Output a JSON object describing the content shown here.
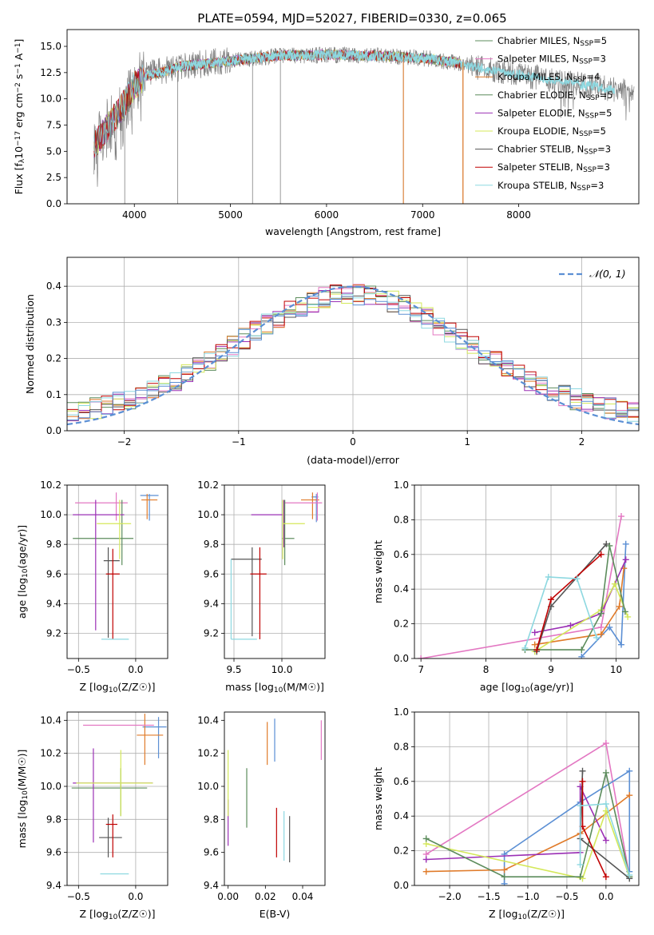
{
  "chart_data": [
    {
      "id": "spectrum",
      "type": "line",
      "title": "PLATE=0594, MJD=52027, FIBERID=0330, z=0.065",
      "xlabel": "wavelength [Angstrom, rest frame]",
      "ylabel": "Flux [f_λ10^-17 erg cm^-2 s^-1 A^-1]",
      "xlim": [
        3300,
        9250
      ],
      "ylim": [
        0,
        16.6
      ],
      "xticks": [
        4000,
        5000,
        6000,
        7000,
        8000
      ],
      "yticks": [
        0.0,
        2.5,
        5.0,
        7.5,
        10.0,
        12.5,
        15.0
      ],
      "grid": false,
      "legend_position": "upper-right",
      "data_color": "#808080",
      "wavelength_range": [
        3580,
        9200
      ],
      "continuum_anchors": {
        "x": [
          3580,
          3700,
          3800,
          3900,
          4000,
          4100,
          4300,
          4500,
          4800,
          5000,
          5500,
          6000,
          6500,
          7000,
          7300,
          7500,
          8000,
          8500,
          9200
        ],
        "y": [
          5.6,
          7.0,
          8.3,
          9.6,
          11.2,
          12.1,
          12.6,
          13.1,
          13.4,
          13.6,
          14.1,
          14.2,
          14.1,
          13.9,
          13.5,
          13.1,
          12.3,
          11.6,
          10.6
        ]
      },
      "absorption_spikes": [
        3900,
        4450,
        5230,
        5520,
        6800,
        7420
      ],
      "series": [
        {
          "name": "Chabrier MILES, N_SSP=5",
          "color": "#5c8c5c"
        },
        {
          "name": "Salpeter MILES, N_SSP=3",
          "color": "#e377c2"
        },
        {
          "name": "Kroupa MILES, N_SSP=4",
          "color": "#e07b2a"
        },
        {
          "name": "Chabrier ELODIE, N_SSP=5",
          "color": "#5c8c5c"
        },
        {
          "name": "Salpeter ELODIE, N_SSP=5",
          "color": "#9b30b5"
        },
        {
          "name": "Kroupa ELODIE, N_SSP=5",
          "color": "#d4e85a"
        },
        {
          "name": "Chabrier STELIB, N_SSP=3",
          "color": "#555555"
        },
        {
          "name": "Salpeter STELIB, N_SSP=3",
          "color": "#c00000"
        },
        {
          "name": "Kroupa STELIB, N_SSP=3",
          "color": "#8dd8e0"
        }
      ]
    },
    {
      "id": "residuals",
      "type": "line",
      "xlabel": "(data-model)/error",
      "ylabel": "Normed distribution",
      "xlim": [
        -2.5,
        2.5
      ],
      "ylim": [
        0,
        0.48
      ],
      "xticks": [
        -2,
        -1,
        0,
        1,
        2
      ],
      "yticks": [
        0.0,
        0.1,
        0.2,
        0.3,
        0.4
      ],
      "grid": true,
      "legend_label": "N(0,1)",
      "legend_position": "upper-right",
      "gaussian_color": "#5b8fd4",
      "bin_width": 0.1,
      "hist_colors": [
        "#5c8c5c",
        "#e377c2",
        "#e07b2a",
        "#9b30b5",
        "#d4e85a",
        "#555555",
        "#c00000",
        "#8dd8e0",
        "#5b8fd4"
      ]
    },
    {
      "id": "age_vs_Z",
      "type": "scatter",
      "xlabel": "Z [log10(Z/Z☉)]",
      "ylabel": "age [log10(age/yr)]",
      "xlim": [
        -0.6,
        0.28
      ],
      "ylim": [
        9.03,
        10.2
      ],
      "xticks": [
        -0.5,
        0.0
      ],
      "yticks": [
        9.2,
        9.4,
        9.6,
        9.8,
        10.0,
        10.2
      ],
      "grid": true,
      "points": [
        {
          "color": "#5b8fd4",
          "x": 0.12,
          "xerr": [
            0.08,
            0.08
          ],
          "y": 10.13,
          "yerr": [
            0.17,
            0.01
          ]
        },
        {
          "color": "#e07b2a",
          "x": 0.1,
          "xerr": [
            0.05,
            0.09
          ],
          "y": 10.1,
          "yerr": [
            0.13,
            0.04
          ]
        },
        {
          "color": "#e377c2",
          "x": -0.17,
          "xerr": [
            0.36,
            0.1
          ],
          "y": 10.08,
          "yerr": [
            0.12,
            0.07
          ]
        },
        {
          "color": "#5c8c5c",
          "x": -0.12,
          "xerr": [
            0.43,
            0.1
          ],
          "y": 9.84,
          "yerr": [
            0.18,
            0.26
          ]
        },
        {
          "color": "#9b30b5",
          "x": -0.35,
          "xerr": [
            0.2,
            0.25
          ],
          "y": 10.0,
          "yerr": [
            0.78,
            0.1
          ]
        },
        {
          "color": "#d4e85a",
          "x": -0.14,
          "xerr": [
            0.2,
            0.1
          ],
          "y": 9.94,
          "yerr": [
            0.24,
            0.16
          ]
        },
        {
          "color": "#555555",
          "x": -0.24,
          "xerr": [
            0.04,
            0.1
          ],
          "y": 9.69,
          "yerr": [
            0.52,
            0.09
          ]
        },
        {
          "color": "#c00000",
          "x": -0.2,
          "xerr": [
            0.06,
            0.06
          ],
          "y": 9.6,
          "yerr": [
            0.44,
            0.17
          ]
        },
        {
          "color": "#8dd8e0",
          "x": -0.24,
          "xerr": [
            0.06,
            0.18
          ],
          "y": 9.16,
          "yerr": [
            0.0,
            0.0
          ]
        }
      ]
    },
    {
      "id": "age_vs_mass",
      "type": "scatter",
      "xlabel": "mass [log10(M/M☉)]",
      "ylabel": "",
      "xlim": [
        9.4,
        10.45
      ],
      "ylim": [
        9.03,
        10.2
      ],
      "xticks": [
        9.5,
        10.0
      ],
      "yticks": [
        9.2,
        9.4,
        9.6,
        9.8,
        10.0,
        10.2
      ],
      "grid": true,
      "points": [
        {
          "color": "#5b8fd4",
          "x": 10.36,
          "xerr": [
            0.05,
            0.02
          ],
          "y": 10.12,
          "yerr": [
            0.17,
            0.02
          ]
        },
        {
          "color": "#e07b2a",
          "x": 10.32,
          "xerr": [
            0.12,
            0.07
          ],
          "y": 10.1,
          "yerr": [
            0.13,
            0.05
          ]
        },
        {
          "color": "#e377c2",
          "x": 10.37,
          "xerr": [
            0.34,
            0.05
          ],
          "y": 10.08,
          "yerr": [
            0.12,
            0.07
          ]
        },
        {
          "color": "#5c8c5c",
          "x": 10.03,
          "xerr": [
            0.03,
            0.1
          ],
          "y": 9.84,
          "yerr": [
            0.18,
            0.26
          ]
        },
        {
          "color": "#9b30b5",
          "x": 10.02,
          "xerr": [
            0.34,
            0.0
          ],
          "y": 10.0,
          "yerr": [
            0.22,
            0.1
          ]
        },
        {
          "color": "#d4e85a",
          "x": 10.01,
          "xerr": [
            0.0,
            0.23
          ],
          "y": 9.94,
          "yerr": [
            0.24,
            0.16
          ]
        },
        {
          "color": "#555555",
          "x": 9.69,
          "xerr": [
            0.22,
            0.1
          ],
          "y": 9.7,
          "yerr": [
            0.52,
            0.08
          ]
        },
        {
          "color": "#c00000",
          "x": 9.77,
          "xerr": [
            0.1,
            0.07
          ],
          "y": 9.6,
          "yerr": [
            0.44,
            0.18
          ]
        },
        {
          "color": "#8dd8e0",
          "x": 9.47,
          "xerr": [
            0.0,
            0.27
          ],
          "y": 9.16,
          "yerr": [
            0.0,
            0.54
          ]
        }
      ]
    },
    {
      "id": "weight_vs_age",
      "type": "line",
      "xlabel": "age [log10(age/yr)]",
      "ylabel": "mass weight",
      "xlim": [
        6.9,
        10.35
      ],
      "ylim": [
        0,
        1.0
      ],
      "xticks": [
        7,
        8,
        9,
        10
      ],
      "yticks": [
        0.0,
        0.2,
        0.4,
        0.6,
        0.8,
        1.0
      ],
      "grid": true,
      "series": [
        {
          "color": "#e377c2",
          "x": [
            7.0,
            9.77,
            10.08
          ],
          "y": [
            0.0,
            0.18,
            0.82
          ]
        },
        {
          "color": "#5b8fd4",
          "x": [
            9.47,
            9.9,
            10.08,
            10.15
          ],
          "y": [
            0.01,
            0.18,
            0.08,
            0.66
          ]
        },
        {
          "color": "#e07b2a",
          "x": [
            8.75,
            9.77,
            10.05,
            10.12
          ],
          "y": [
            0.08,
            0.14,
            0.3,
            0.52
          ]
        },
        {
          "color": "#9b30b5",
          "x": [
            8.75,
            9.3,
            9.77,
            10.15
          ],
          "y": [
            0.15,
            0.19,
            0.26,
            0.57
          ]
        },
        {
          "color": "#d4e85a",
          "x": [
            8.75,
            9.77,
            9.98,
            10.18
          ],
          "y": [
            0.04,
            0.28,
            0.43,
            0.24
          ]
        },
        {
          "color": "#5c8c5c",
          "x": [
            8.6,
            9.47,
            9.77,
            9.9,
            10.14
          ],
          "y": [
            0.05,
            0.05,
            0.26,
            0.65,
            0.27
          ]
        },
        {
          "color": "#555555",
          "x": [
            8.78,
            9.0,
            9.85
          ],
          "y": [
            0.04,
            0.3,
            0.66
          ]
        },
        {
          "color": "#c00000",
          "x": [
            8.78,
            9.0,
            9.77
          ],
          "y": [
            0.05,
            0.34,
            0.6
          ]
        },
        {
          "color": "#8dd8e0",
          "x": [
            8.6,
            8.96,
            9.4,
            9.7
          ],
          "y": [
            0.06,
            0.47,
            0.46,
            0.12
          ]
        }
      ]
    },
    {
      "id": "mass_vs_Z",
      "type": "scatter",
      "xlabel": "Z [log10(Z/Z☉)]",
      "ylabel": "mass [log10(M/M☉)]",
      "xlim": [
        -0.6,
        0.28
      ],
      "ylim": [
        9.4,
        10.45
      ],
      "xticks": [
        -0.5,
        0.0
      ],
      "yticks": [
        9.4,
        9.6,
        9.8,
        10.0,
        10.2,
        10.4
      ],
      "grid": true,
      "points": [
        {
          "color": "#5b8fd4",
          "x": 0.2,
          "xerr": [
            0.14,
            0.07
          ],
          "y": 10.36,
          "yerr": [
            0.19,
            0.06
          ]
        },
        {
          "color": "#e07b2a",
          "x": 0.08,
          "xerr": [
            0.07,
            0.16
          ],
          "y": 10.31,
          "yerr": [
            0.18,
            0.13
          ]
        },
        {
          "color": "#e377c2",
          "x": -0.01,
          "xerr": [
            0.45,
            0.17
          ],
          "y": 10.37,
          "yerr": [
            0.0,
            0.0
          ]
        },
        {
          "color": "#5c8c5c",
          "x": -0.13,
          "xerr": [
            0.43,
            0.23
          ],
          "y": 9.99,
          "yerr": [
            0.17,
            0.12
          ]
        },
        {
          "color": "#9b30b5",
          "x": -0.37,
          "xerr": [
            0.18,
            0.52
          ],
          "y": 10.02,
          "yerr": [
            0.36,
            0.21
          ]
        },
        {
          "color": "#d4e85a",
          "x": -0.13,
          "xerr": [
            0.39,
            0.28
          ],
          "y": 10.02,
          "yerr": [
            0.2,
            0.2
          ]
        },
        {
          "color": "#555555",
          "x": -0.24,
          "xerr": [
            0.08,
            0.12
          ],
          "y": 9.69,
          "yerr": [
            0.12,
            0.12
          ]
        },
        {
          "color": "#c00000",
          "x": -0.2,
          "xerr": [
            0.06,
            0.04
          ],
          "y": 9.77,
          "yerr": [
            0.2,
            0.06
          ]
        },
        {
          "color": "#8dd8e0",
          "x": -0.24,
          "xerr": [
            0.07,
            0.18
          ],
          "y": 9.47,
          "yerr": [
            0.0,
            0.0
          ]
        }
      ]
    },
    {
      "id": "mass_vs_EBV",
      "type": "scatter",
      "xlabel": "E(B-V)",
      "ylabel": "",
      "xlim": [
        -0.002,
        0.052
      ],
      "ylim": [
        9.4,
        10.45
      ],
      "xticks": [
        0.0,
        0.02,
        0.04
      ],
      "yticks": [
        9.4,
        9.6,
        9.8,
        10.0,
        10.2,
        10.4
      ],
      "grid": false,
      "points": [
        {
          "color": "#5b8fd4",
          "x": 0.025,
          "y": 10.28,
          "yerr": [
            0.13,
            0.13
          ]
        },
        {
          "color": "#e07b2a",
          "x": 0.021,
          "y": 10.26,
          "yerr": [
            0.13,
            0.13
          ]
        },
        {
          "color": "#e377c2",
          "x": 0.05,
          "y": 10.28,
          "yerr": [
            0.12,
            0.12
          ]
        },
        {
          "color": "#5c8c5c",
          "x": 0.01,
          "y": 9.93,
          "yerr": [
            0.18,
            0.18
          ]
        },
        {
          "color": "#9b30b5",
          "x": 0.0,
          "y": 9.78,
          "yerr": [
            0.14,
            0.14
          ]
        },
        {
          "color": "#d4e85a",
          "x": 0.0,
          "y": 10.02,
          "yerr": [
            0.2,
            0.2
          ]
        },
        {
          "color": "#555555",
          "x": 0.033,
          "y": 9.68,
          "yerr": [
            0.14,
            0.14
          ]
        },
        {
          "color": "#c00000",
          "x": 0.026,
          "y": 9.72,
          "yerr": [
            0.15,
            0.15
          ]
        },
        {
          "color": "#8dd8e0",
          "x": 0.03,
          "y": 9.7,
          "yerr": [
            0.15,
            0.15
          ]
        }
      ]
    },
    {
      "id": "weight_vs_Z",
      "type": "line",
      "xlabel": "Z [log10(Z/Z☉)]",
      "ylabel": "mass weight",
      "xlim": [
        -2.45,
        0.42
      ],
      "ylim": [
        0,
        1.0
      ],
      "xticks": [
        -2.0,
        -1.5,
        -1.0,
        -0.5,
        0.0
      ],
      "yticks": [
        0.0,
        0.2,
        0.4,
        0.6,
        0.8,
        1.0
      ],
      "grid": true,
      "series": [
        {
          "color": "#e377c2",
          "x": [
            -2.3,
            0.0,
            0.3
          ],
          "y": [
            0.18,
            0.82,
            0.05
          ]
        },
        {
          "color": "#5b8fd4",
          "x": [
            -1.3,
            -1.3,
            -0.33,
            0.3,
            0.3
          ],
          "y": [
            0.01,
            0.18,
            0.48,
            0.66,
            0.08
          ]
        },
        {
          "color": "#e07b2a",
          "x": [
            -2.3,
            -1.3,
            -0.33,
            0.3
          ],
          "y": [
            0.08,
            0.09,
            0.3,
            0.52
          ]
        },
        {
          "color": "#9b30b5",
          "x": [
            -2.3,
            -0.33,
            -0.33,
            0.0
          ],
          "y": [
            0.15,
            0.19,
            0.57,
            0.26
          ]
        },
        {
          "color": "#d4e85a",
          "x": [
            -2.3,
            -0.3,
            0.0,
            0.3
          ],
          "y": [
            0.24,
            0.04,
            0.43,
            0.05
          ]
        },
        {
          "color": "#5c8c5c",
          "x": [
            -2.3,
            -1.3,
            -0.33,
            0.0,
            0.3
          ],
          "y": [
            0.27,
            0.05,
            0.05,
            0.65,
            0.05
          ]
        },
        {
          "color": "#555555",
          "x": [
            -0.3,
            -0.33,
            0.3
          ],
          "y": [
            0.66,
            0.27,
            0.04
          ]
        },
        {
          "color": "#c00000",
          "x": [
            -0.3,
            -0.3,
            0.0
          ],
          "y": [
            0.6,
            0.34,
            0.05
          ]
        },
        {
          "color": "#8dd8e0",
          "x": [
            -0.33,
            -0.33,
            0.0,
            0.3
          ],
          "y": [
            0.12,
            0.46,
            0.47,
            0.06
          ]
        }
      ]
    }
  ]
}
